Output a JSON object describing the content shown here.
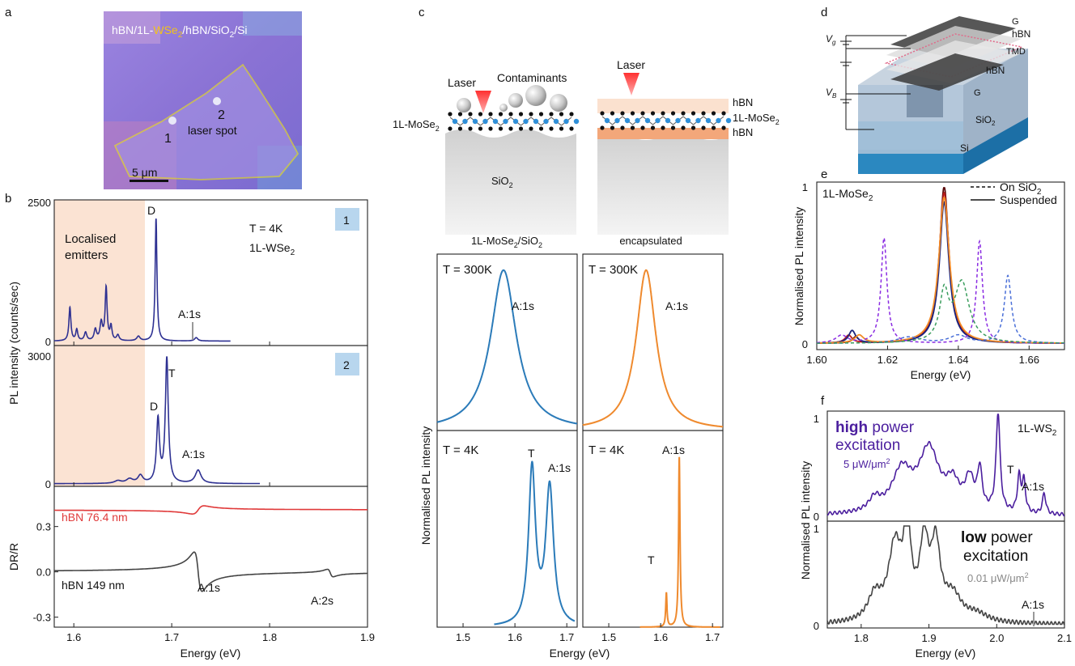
{
  "panels": {
    "a": {
      "label": "a",
      "title_pre": "hBN/1L-",
      "title_hl": "WSe",
      "title_hl_sub": "2",
      "title_post": "/hBN/SiO",
      "title_post_sub": "2",
      "title_end": "/Si",
      "spot1": "1",
      "spot2": "2",
      "spot_text": "laser spot",
      "scalebar": "5 μm",
      "colors": {
        "highlight": "#f2c21b",
        "outline": "#e8e020",
        "bg": "#8f78d8"
      }
    },
    "b": {
      "label": "b",
      "ylabel_top": "PL intensity (counts/sec)",
      "ylabel_bottom": "DR/R",
      "xlabel": "Energy (eV)",
      "shade_label_1": "Localised",
      "shade_label_2": "emitters",
      "temp": "T = 4K",
      "mat": "1L-WSe",
      "mat_sub": "2",
      "badge1": "1",
      "badge2": "2",
      "peak_D": "D",
      "peak_T": "T",
      "peak_A1s": "A:1s",
      "peak_A2s": "A:2s",
      "hbn_red": "hBN 76.4 nm",
      "hbn_grey": "hBN 149 nm",
      "colors": {
        "pl": "#2e3192",
        "shade": "#fbe3d3",
        "red": "#e03a3a",
        "grey": "#444444",
        "badge": "#b8d6ee"
      }
    },
    "c": {
      "label": "c",
      "laser": "Laser",
      "laser2": "Laser",
      "contaminants": "Contaminants",
      "mat_left": "1L-MoSe",
      "mat_left_sub": "2",
      "sio2": "SiO",
      "sio2_sub": "2",
      "hbn_top": "hBN",
      "hbn_bottom": "hBN",
      "mat_right": "1L-MoSe",
      "mat_right_sub": "2",
      "col1_title": "1L-MoSe",
      "col1_title_sub": "2",
      "col1_title_post": "/SiO",
      "col1_title_post_sub": "2",
      "col2_title": "encapsulated",
      "temp300": "T = 300K",
      "temp4": "T = 4K",
      "peak_A1s": "A:1s",
      "peak_T": "T",
      "ylabel": "Normalised PL intensity",
      "xlabel": "Energy (eV)",
      "colors": {
        "blue": "#2b7bb9",
        "orange": "#ef8a2e",
        "substrate": "#c8c8c8",
        "hbn": "#f3a77a"
      }
    },
    "d": {
      "label": "d",
      "G_top": "G",
      "hBN_top": "hBN",
      "TMD": "TMD",
      "hBN_bottom": "hBN",
      "G_bottom": "G",
      "Vg": "V",
      "Vg_sub": "g",
      "VB": "V",
      "VB_sub": "B",
      "SiO2": "SiO",
      "SiO2_sub": "2",
      "Si": "Si"
    },
    "e": {
      "label": "e",
      "mat": "1L-MoSe",
      "mat_sub": "2",
      "legend_dashed": "On SiO",
      "legend_dashed_sub": "2",
      "legend_solid": "Suspended",
      "ylabel": "Normalised PL intensity",
      "xlabel": "Energy (eV)",
      "y_top": "1",
      "y_zero": "0"
    },
    "f": {
      "label": "f",
      "high_bold": "high",
      "high_rest": " power",
      "high_line2": "excitation",
      "high_power": "5 μW/μm",
      "high_power_sup": "2",
      "mat": "1L-WS",
      "mat_sub": "2",
      "peak_T": "T",
      "peak_A1s": "A:1s",
      "low_bold": "low",
      "low_rest": " power",
      "low_line2": "excitation",
      "low_power": "0.01 μW/μm",
      "low_power_sup": "2",
      "peak_A1s_low": "A:1s",
      "ylabel": "Normalised PL intensity",
      "xlabel": "Energy (eV)",
      "y_top": "1",
      "y_zero": "0",
      "y_top2": "1",
      "y_zero2": "0",
      "colors": {
        "purple": "#4b1e9e",
        "dark": "#444444"
      }
    }
  },
  "chart_data": [
    {
      "id": "b-pl-spot1",
      "type": "line",
      "xlim": [
        1.58,
        1.9
      ],
      "ylim": [
        0,
        2500
      ],
      "yticks": [
        0,
        2500
      ],
      "peaks": [
        {
          "x": 1.596,
          "y": 600,
          "w": 0.0012
        },
        {
          "x": 1.603,
          "y": 200,
          "w": 0.0012
        },
        {
          "x": 1.612,
          "y": 150,
          "w": 0.0015
        },
        {
          "x": 1.622,
          "y": 200,
          "w": 0.0015
        },
        {
          "x": 1.628,
          "y": 320,
          "w": 0.0015
        },
        {
          "x": 1.633,
          "y": 950,
          "w": 0.0012
        },
        {
          "x": 1.638,
          "y": 250,
          "w": 0.0012
        },
        {
          "x": 1.645,
          "y": 100,
          "w": 0.0015
        },
        {
          "x": 1.666,
          "y": 80,
          "w": 0.002
        },
        {
          "x": 1.684,
          "y": 2200,
          "w": 0.0011
        },
        {
          "x": 1.725,
          "y": 60,
          "w": 0.002
        }
      ]
    },
    {
      "id": "b-pl-spot2",
      "type": "line",
      "xlim": [
        1.58,
        1.9
      ],
      "ylim": [
        0,
        3000
      ],
      "yticks": [
        0,
        3000
      ],
      "peaks": [
        {
          "x": 1.645,
          "y": 60,
          "w": 0.004
        },
        {
          "x": 1.657,
          "y": 100,
          "w": 0.004
        },
        {
          "x": 1.668,
          "y": 180,
          "w": 0.003
        },
        {
          "x": 1.686,
          "y": 1480,
          "w": 0.0018
        },
        {
          "x": 1.695,
          "y": 2920,
          "w": 0.0018
        },
        {
          "x": 1.727,
          "y": 310,
          "w": 0.0035
        }
      ]
    },
    {
      "id": "b-reflectance",
      "type": "line",
      "xlim": [
        1.58,
        1.9
      ],
      "ylim": [
        -0.35,
        0.55
      ],
      "yticks": [
        -0.3,
        0.0,
        0.3
      ],
      "series": [
        {
          "name": "hBN 76.4 nm",
          "offset": 0.41,
          "amp": 0.045,
          "x0": 1.727,
          "w": 0.004
        },
        {
          "name": "hBN 149 nm",
          "offset": 0.0,
          "amp": 0.13,
          "x0": 1.727,
          "w": 0.004,
          "x2s": 1.862,
          "amp2s": 0.025
        }
      ]
    },
    {
      "id": "c-sio2-300k",
      "type": "line",
      "xlim": [
        1.45,
        1.72
      ],
      "ylim": [
        0,
        1.08
      ],
      "peaks": [
        {
          "x": 1.578,
          "y": 1.0,
          "w": 0.03
        }
      ]
    },
    {
      "id": "c-encap-300k",
      "type": "line",
      "xlim": [
        1.45,
        1.72
      ],
      "ylim": [
        0,
        1.08
      ],
      "peaks": [
        {
          "x": 1.572,
          "y": 1.0,
          "w": 0.023
        }
      ]
    },
    {
      "id": "c-sio2-4k",
      "type": "line",
      "xlim": [
        1.45,
        1.72
      ],
      "xticks": [
        1.5,
        1.6,
        1.7
      ],
      "ylim": [
        0,
        1.08
      ],
      "peaks": [
        {
          "x": 1.633,
          "y": 0.92,
          "w": 0.008
        },
        {
          "x": 1.667,
          "y": 0.81,
          "w": 0.009
        }
      ]
    },
    {
      "id": "c-encap-4k",
      "type": "line",
      "xlim": [
        1.45,
        1.72
      ],
      "xticks": [
        1.5,
        1.6,
        1.7
      ],
      "ylim": [
        0,
        1.08
      ],
      "peaks": [
        {
          "x": 1.611,
          "y": 0.2,
          "w": 0.0015
        },
        {
          "x": 1.636,
          "y": 1.0,
          "w": 0.0017
        }
      ]
    },
    {
      "id": "e-mose2",
      "type": "line",
      "xlim": [
        1.6,
        1.67
      ],
      "xticks": [
        1.6,
        1.62,
        1.64,
        1.66
      ],
      "ylim": [
        0,
        1.0
      ],
      "series": [
        {
          "name": "Suspended",
          "style": "solid",
          "color": "#5a0a0a",
          "peaks": [
            {
              "x": 1.636,
              "y": 1.0,
              "w": 0.0016
            },
            {
              "x": 1.611,
              "y": 0.04,
              "w": 0.001
            }
          ]
        },
        {
          "name": "Suspended",
          "style": "solid",
          "color": "#b71c1c",
          "peaks": [
            {
              "x": 1.636,
              "y": 0.96,
              "w": 0.0017
            },
            {
              "x": 1.609,
              "y": 0.05,
              "w": 0.0012
            }
          ]
        },
        {
          "name": "Suspended",
          "style": "solid",
          "color": "#1a237e",
          "peaks": [
            {
              "x": 1.636,
              "y": 0.9,
              "w": 0.0016
            },
            {
              "x": 1.61,
              "y": 0.08,
              "w": 0.0012
            }
          ]
        },
        {
          "name": "Suspended",
          "style": "solid",
          "color": "#f28c28",
          "peaks": [
            {
              "x": 1.636,
              "y": 0.93,
              "w": 0.0018
            },
            {
              "x": 1.612,
              "y": 0.05,
              "w": 0.0015
            }
          ]
        },
        {
          "name": "On SiO2",
          "style": "dashed",
          "color": "#8a2be2",
          "peaks": [
            {
              "x": 1.619,
              "y": 0.67,
              "w": 0.001
            },
            {
              "x": 1.646,
              "y": 0.65,
              "w": 0.001
            },
            {
              "x": 1.607,
              "y": 0.05,
              "w": 0.002
            }
          ]
        },
        {
          "name": "On SiO2",
          "style": "dashed",
          "color": "#4a6fd8",
          "peaks": [
            {
              "x": 1.654,
              "y": 0.43,
              "w": 0.0012
            },
            {
              "x": 1.626,
              "y": 0.04,
              "w": 0.004
            },
            {
              "x": 1.64,
              "y": 0.05,
              "w": 0.003
            }
          ]
        },
        {
          "name": "On SiO2",
          "style": "dashed",
          "color": "#3a9d5d",
          "peaks": [
            {
              "x": 1.641,
              "y": 0.38,
              "w": 0.0025
            },
            {
              "x": 1.636,
              "y": 0.3,
              "w": 0.0015
            }
          ]
        }
      ]
    },
    {
      "id": "f-high",
      "type": "line",
      "xlim": [
        1.75,
        2.1
      ],
      "ylim": [
        0,
        1.0
      ],
      "peaks": [
        {
          "x": 1.82,
          "y": 0.12,
          "w": 0.01
        },
        {
          "x": 1.86,
          "y": 0.4,
          "w": 0.018
        },
        {
          "x": 1.9,
          "y": 0.6,
          "w": 0.018
        },
        {
          "x": 1.935,
          "y": 0.25,
          "w": 0.012
        },
        {
          "x": 1.96,
          "y": 0.3,
          "w": 0.008
        },
        {
          "x": 1.975,
          "y": 0.38,
          "w": 0.004
        },
        {
          "x": 2.002,
          "y": 0.96,
          "w": 0.0035
        },
        {
          "x": 2.033,
          "y": 0.34,
          "w": 0.003
        },
        {
          "x": 2.04,
          "y": 0.3,
          "w": 0.003
        },
        {
          "x": 2.07,
          "y": 0.2,
          "w": 0.003
        }
      ]
    },
    {
      "id": "f-low",
      "type": "line",
      "xlim": [
        1.75,
        2.1
      ],
      "xticks": [
        1.8,
        1.9,
        2.0,
        2.1
      ],
      "ylim": [
        0,
        1.0
      ],
      "peaks": [
        {
          "x": 1.82,
          "y": 0.25,
          "w": 0.012
        },
        {
          "x": 1.85,
          "y": 0.75,
          "w": 0.012
        },
        {
          "x": 1.868,
          "y": 0.9,
          "w": 0.006
        },
        {
          "x": 1.893,
          "y": 0.75,
          "w": 0.008
        },
        {
          "x": 1.91,
          "y": 0.72,
          "w": 0.008
        },
        {
          "x": 1.935,
          "y": 0.25,
          "w": 0.015
        },
        {
          "x": 1.97,
          "y": 0.08,
          "w": 0.02
        }
      ]
    }
  ]
}
